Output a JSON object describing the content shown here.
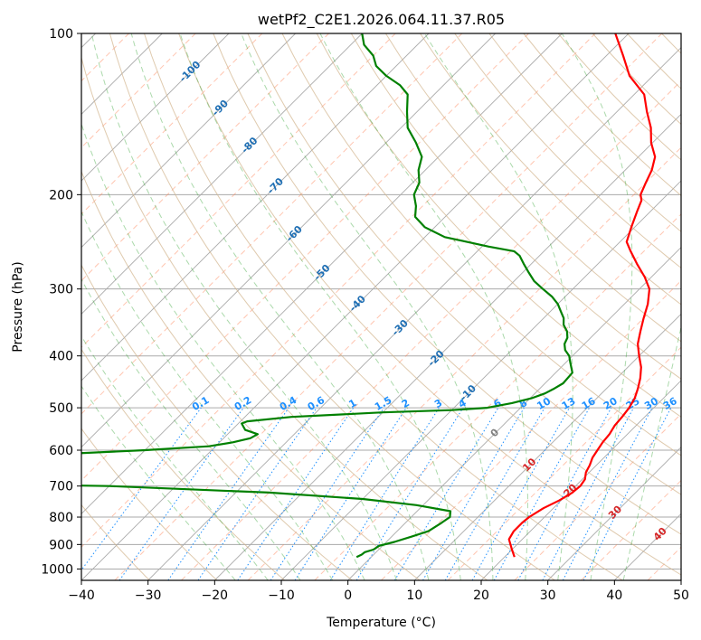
{
  "chart_data": {
    "type": "line",
    "title": "wetPf2_C2E1.2026.064.11.37.R05",
    "xlabel": "Temperature (°C)",
    "ylabel": "Pressure (hPa)",
    "xlim": [
      -40,
      50
    ],
    "ylim": [
      1050,
      100
    ],
    "y_scale": "log",
    "skew": 1.0,
    "grid": true,
    "x_ticks": [
      -40,
      -30,
      -20,
      -10,
      0,
      10,
      20,
      30,
      40,
      50
    ],
    "y_ticks": [
      100,
      200,
      300,
      400,
      500,
      600,
      700,
      800,
      900,
      1000
    ],
    "colors": {
      "temperature": "#ff0000",
      "dewpoint": "#008000",
      "dry_adiabats": "#d2b48c",
      "moist_adiabats": "#2ca02c",
      "isotherms": "#ff7f50",
      "mixing_ratio": "#1e90ff",
      "grid": "#aaaaaa"
    },
    "series": [
      {
        "key": "temperature",
        "points": [
          [
            950,
            21.5
          ],
          [
            920,
            20
          ],
          [
            880,
            18
          ],
          [
            850,
            17.5
          ],
          [
            820,
            17.5
          ],
          [
            800,
            17.7
          ],
          [
            770,
            18.5
          ],
          [
            745,
            19.7
          ],
          [
            720,
            20.5
          ],
          [
            700,
            20.7
          ],
          [
            680,
            20.4
          ],
          [
            660,
            19.5
          ],
          [
            640,
            19
          ],
          [
            620,
            18.3
          ],
          [
            600,
            17.9
          ],
          [
            580,
            17.5
          ],
          [
            560,
            17.3
          ],
          [
            540,
            16.8
          ],
          [
            520,
            16.6
          ],
          [
            500,
            16.3
          ],
          [
            480,
            15.7
          ],
          [
            460,
            14.7
          ],
          [
            440,
            13.5
          ],
          [
            420,
            12
          ],
          [
            400,
            10
          ],
          [
            380,
            8
          ],
          [
            360,
            6.5
          ],
          [
            340,
            5
          ],
          [
            320,
            3.5
          ],
          [
            300,
            1.5
          ],
          [
            285,
            -1
          ],
          [
            270,
            -4
          ],
          [
            255,
            -7
          ],
          [
            245,
            -9
          ],
          [
            230,
            -10.5
          ],
          [
            215,
            -12
          ],
          [
            205,
            -13
          ],
          [
            200,
            -14
          ],
          [
            190,
            -15
          ],
          [
            180,
            -16
          ],
          [
            170,
            -17.5
          ],
          [
            160,
            -20.2
          ],
          [
            150,
            -22.5
          ],
          [
            140,
            -25.5
          ],
          [
            130,
            -28.5
          ],
          [
            120,
            -33.5
          ],
          [
            110,
            -37.5
          ],
          [
            100,
            -42
          ]
        ]
      },
      {
        "key": "dewpoint",
        "points": [
          [
            950,
            -2.2
          ],
          [
            940,
            -1.8
          ],
          [
            930,
            -1.7
          ],
          [
            920,
            -0.8
          ],
          [
            905,
            -0.5
          ],
          [
            890,
            1.2
          ],
          [
            870,
            3
          ],
          [
            850,
            4.7
          ],
          [
            820,
            5.4
          ],
          [
            800,
            5.8
          ],
          [
            780,
            5
          ],
          [
            760,
            -1
          ],
          [
            740,
            -10
          ],
          [
            720,
            -25
          ],
          [
            700,
            -50
          ],
          [
            690,
            -80
          ],
          [
            630,
            -80
          ],
          [
            610,
            -62
          ],
          [
            600,
            -50
          ],
          [
            590,
            -41
          ],
          [
            580,
            -38
          ],
          [
            570,
            -36
          ],
          [
            560,
            -35.5
          ],
          [
            550,
            -38
          ],
          [
            540,
            -39
          ],
          [
            535,
            -39.5
          ],
          [
            530,
            -39
          ],
          [
            520,
            -33
          ],
          [
            510,
            -20
          ],
          [
            505,
            -10
          ],
          [
            500,
            -5
          ],
          [
            490,
            -2
          ],
          [
            480,
            0.2
          ],
          [
            470,
            1.5
          ],
          [
            460,
            2.2
          ],
          [
            450,
            2.7
          ],
          [
            430,
            2.5
          ],
          [
            410,
            0.5
          ],
          [
            400,
            -0.5
          ],
          [
            390,
            -2
          ],
          [
            380,
            -3
          ],
          [
            370,
            -3.5
          ],
          [
            360,
            -4.5
          ],
          [
            350,
            -6
          ],
          [
            340,
            -7
          ],
          [
            330,
            -8.5
          ],
          [
            320,
            -10
          ],
          [
            310,
            -12
          ],
          [
            300,
            -14.5
          ],
          [
            290,
            -17
          ],
          [
            280,
            -19
          ],
          [
            270,
            -21
          ],
          [
            260,
            -23
          ],
          [
            255,
            -24.5
          ],
          [
            250,
            -29
          ],
          [
            240,
            -37
          ],
          [
            230,
            -41.5
          ],
          [
            220,
            -44.5
          ],
          [
            210,
            -46
          ],
          [
            200,
            -48
          ],
          [
            190,
            -49
          ],
          [
            180,
            -51
          ],
          [
            170,
            -52.5
          ],
          [
            160,
            -55.5
          ],
          [
            150,
            -59
          ],
          [
            140,
            -61.5
          ],
          [
            130,
            -64
          ],
          [
            125,
            -66.5
          ],
          [
            120,
            -70
          ],
          [
            115,
            -73
          ],
          [
            110,
            -75
          ],
          [
            105,
            -78
          ],
          [
            100,
            -80
          ]
        ]
      }
    ],
    "isotherm_labels": [
      "-100",
      "-90",
      "-80",
      "-70",
      "-60",
      "-50",
      "-40",
      "-30",
      "-20",
      "-10",
      "0",
      "10",
      "20",
      "30",
      "40"
    ],
    "mixing_ratio_labels": [
      "0.1",
      "0.2",
      "0.4",
      "0.6",
      "1",
      "1.5",
      "2",
      "3",
      "4",
      "6",
      "8",
      "10",
      "13",
      "16",
      "20",
      "25",
      "30",
      "36"
    ]
  }
}
